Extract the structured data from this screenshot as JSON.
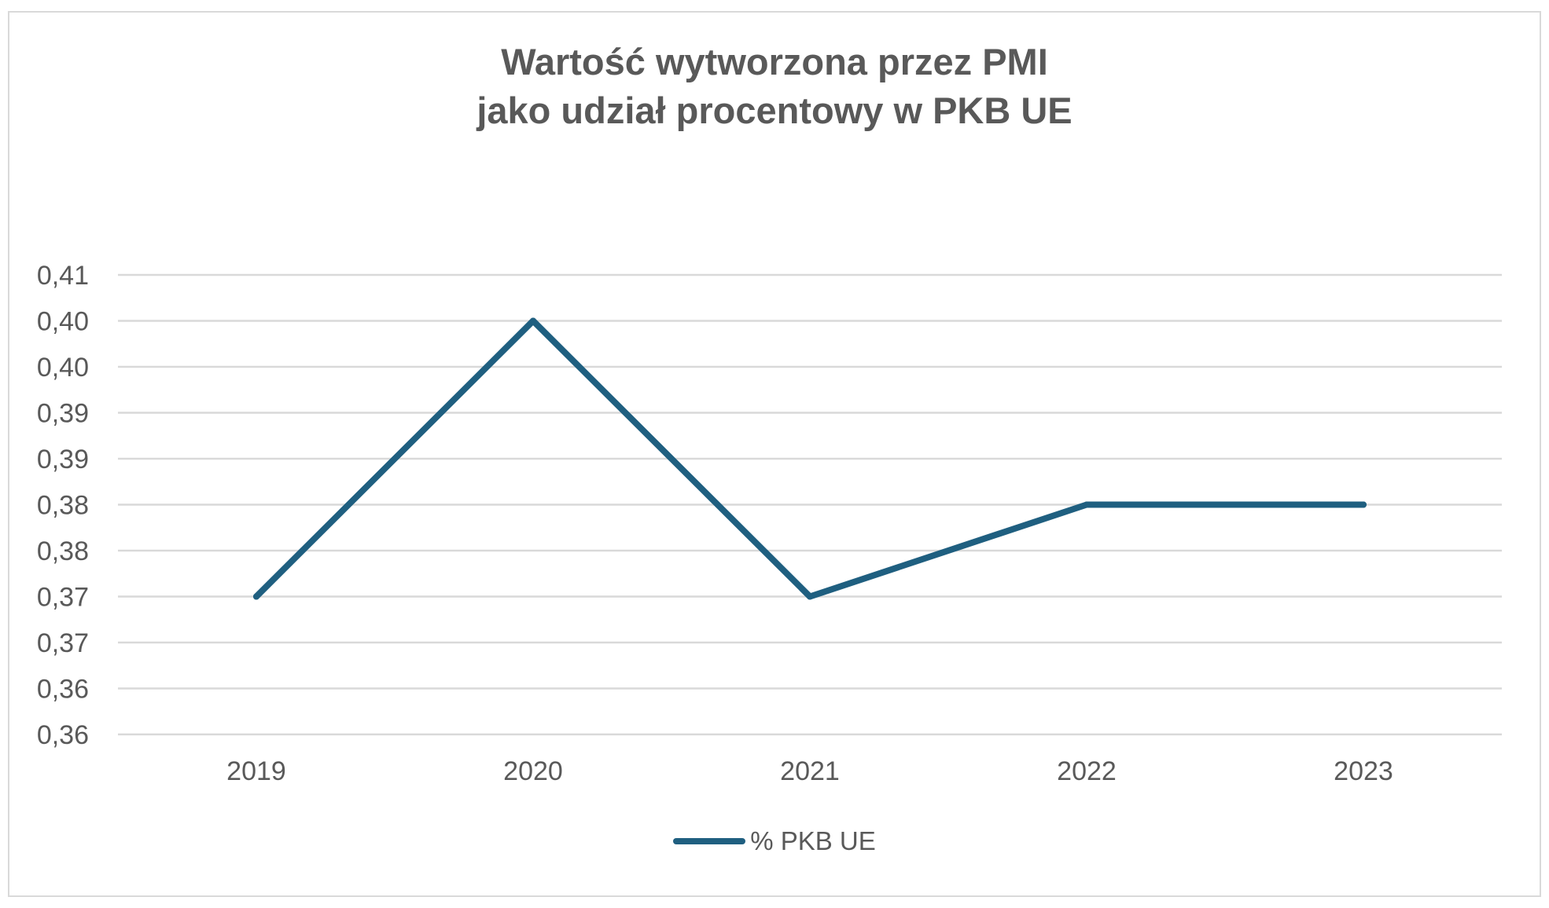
{
  "chart_data": {
    "type": "line",
    "title": [
      "Wartość wytworzona przez PMI",
      "jako udział procentowy w PKB UE"
    ],
    "categories": [
      "2019",
      "2020",
      "2021",
      "2022",
      "2023"
    ],
    "series": [
      {
        "name": "% PKB UE",
        "values": [
          0.37,
          0.4,
          0.37,
          0.38,
          0.38
        ],
        "color": "#1f5f80"
      }
    ],
    "ylim": [
      0.355,
      0.415
    ],
    "y_tick_values": [
      0.355,
      0.36,
      0.365,
      0.37,
      0.375,
      0.38,
      0.385,
      0.39,
      0.395,
      0.4,
      0.405
    ],
    "y_tick_labels": [
      "0,36",
      "0,36",
      "0,37",
      "0,37",
      "0,38",
      "0,38",
      "0,39",
      "0,39",
      "0,40",
      "0,40",
      "0,41"
    ],
    "xlabel": "",
    "ylabel": "",
    "grid": true,
    "legend_position": "bottom",
    "colors": {
      "gridline": "#d9d9d9",
      "text": "#595959",
      "border": "#d9d9d9"
    }
  }
}
